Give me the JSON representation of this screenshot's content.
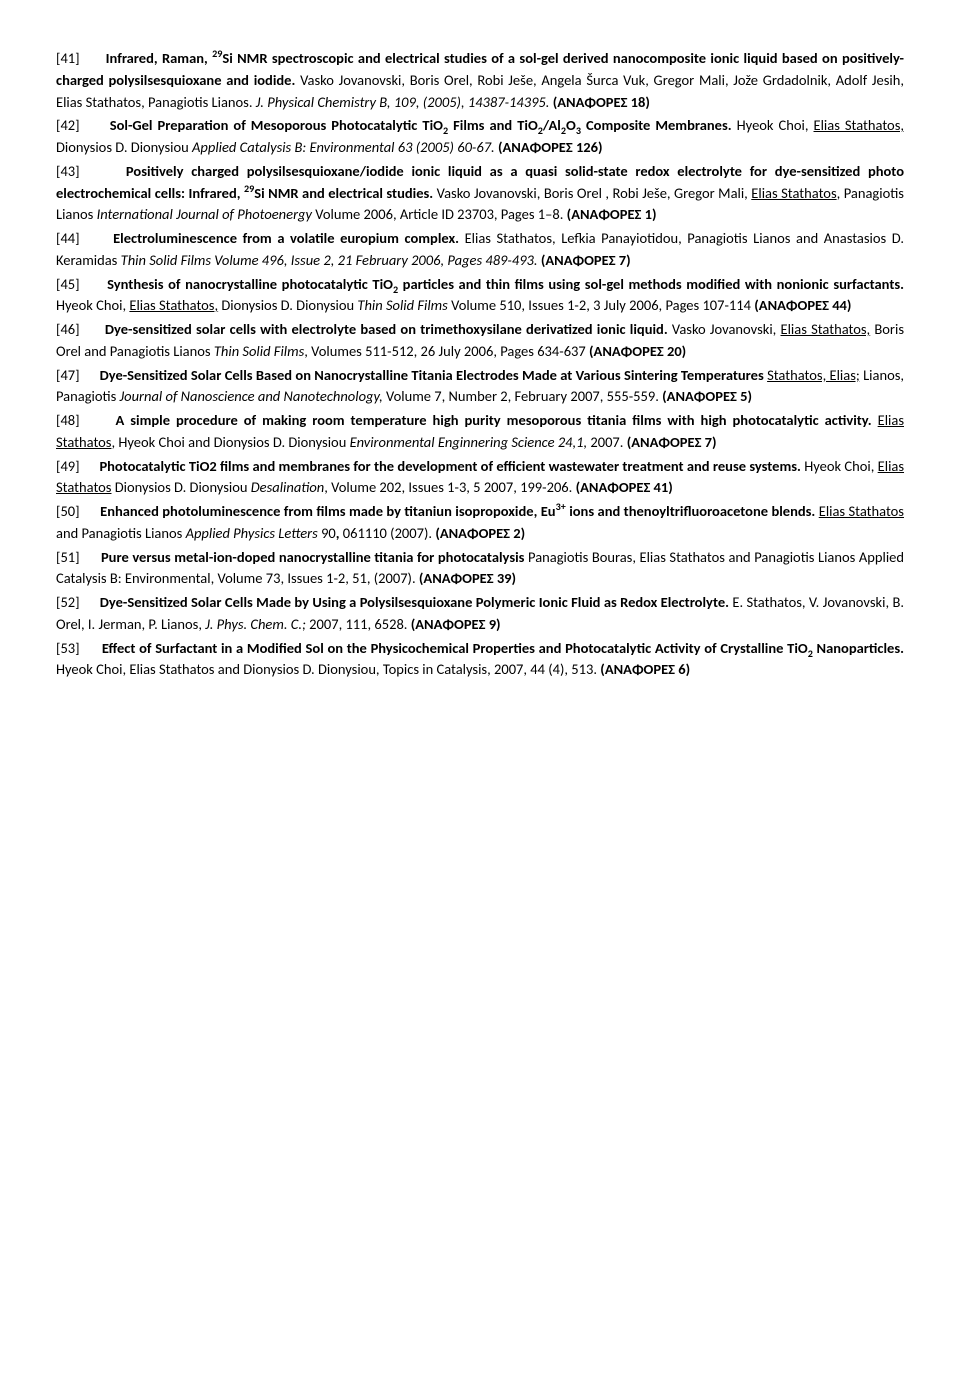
{
  "entries": [
    {
      "num": "[41]",
      "title_html": "Infrared, Raman, <sup>29</sup>Si NMR spectroscopic and electrical studies of a sol-gel derived nanocomposite ionic liquid based on positively-charged polysilsesquioxane and iodide.",
      "rest_html": " Vasko Jovanovski, Boris Orel, Robi Ješe, Angela Šurca Vuk, Gregor Mali, Jože Grdadolnik, Adolf Jesih, Elias Stathatos, Panagiotis Lianos. <span class=\"italic\">J. Physical Chemistry B, 109, (2005), 14387-14395.</span> <span class=\"bold\">(ΑΝΑΦΟΡΕΣ 18)</span>"
    },
    {
      "num": "[42]",
      "title_html": "Sol-Gel Preparation of Mesoporous Photocatalytic TiO<sub>2</sub> Films and TiO<sub>2</sub>/Al<sub>2</sub>O<sub>3</sub> Composite Membranes.",
      "rest_html": " Hyeok Choi, <span class=\"underline\">Elias Stathatos,</span> Dionysios D. Dionysiou <span class=\"italic\">Applied Catalysis B: Environmental 63 (2005) 60-67.</span> <span class=\"bold\">(ΑΝΑΦΟΡΕΣ  126)</span>"
    },
    {
      "num": "[43]",
      "title_html": "Positively charged polysilsesquioxane/iodide ionic liquid as a quasi solid-state redox electrolyte for dye-sensitized photo electrochemical cells: Infrared, <sup>29</sup>Si NMR and electrical studies.",
      "rest_html": " Vasko Jovanovski, Boris Orel , Robi Ješe, Gregor  Mali, <span class=\"underline\">Elias Stathatos</span>, Panagiotis Lianos <span class=\"italic\">International Journal of Photoenergy</span> Volume 2006, Article ID 23703, Pages 1–8. <span class=\"bold\">(ΑΝΑΦΟΡΕΣ  1)</span>"
    },
    {
      "num": "[44]",
      "title_html": "Electroluminescence from a volatile europium complex.",
      "rest_html": " Elias Stathatos, Lefkia Panayiotidou, Panagiotis Lianos and Anastasios D. Keramidas <span class=\"italic\">Thin Solid Films Volume 496, Issue 2, 21 February 2006, Pages 489-493.</span> <span class=\"bold\">(ΑΝΑΦΟΡΕΣ  7)</span>"
    },
    {
      "num": "[45]",
      "title_html": "Synthesis of nanocrystalline photocatalytic TiO<sub>2</sub> particles and thin films using sol-gel methods modified with nonionic surfactants.",
      "rest_html": " Hyeok Choi, <span class=\"underline\">Elias Stathatos,</span> Dionysios D. Dionysiou  <span class=\"italic\">Thin Solid Films</span>  Volume 510, Issues 1-2, 3 July 2006, Pages 107-114 <span class=\"bold\">(ΑΝΑΦΟΡΕΣ  44)</span>"
    },
    {
      "num": "[46]",
      "title_html": "Dye-sensitized solar cells with electrolyte based on trimethoxysilane derivatized ionic liquid.",
      "rest_html": " Vasko Jovanovski,   <span class=\"underline\">Elias  Stathatos,</span> Boris  Orel  and  Panagiotis  Lianos  <span class=\"italic\">Thin  Solid  Films</span>, Volumes  511-512, 26 July 2006, Pages 634-637 <span class=\"bold\">(ΑΝΑΦΟΡΕΣ  20)</span>"
    },
    {
      "num": "[47]",
      "title_html": "Dye-Sensitized Solar Cells Based on Nanocrystalline Titania Electrodes Made at Various Sintering Temperatures",
      "rest_html": " <span class=\"underline\">Stathatos, Elias;</span> Lianos, Panagiotis <span class=\"italic\">Journal of Nanoscience and Nanotechnology,</span> Volume 7, Number 2, February 2007, 555-559. <span class=\"bold\">(ΑΝΑΦΟΡΕΣ  5)</span>"
    },
    {
      "num": "[48]",
      "title_html": "A simple procedure of making room temperature high purity mesoporous titania films with high photocatalytic activity.",
      "rest_html": " <span class=\"underline\">Elias  Stathatos</span>,  Hyeok  Choi  and  Dionysios  D.  Dionysiou  <span class=\"italic\">Environmental Enginnering Science 24,1,</span> 2007.  <span class=\"bold\">(ΑΝΑΦΟΡΕΣ  7)</span>"
    },
    {
      "num": "[49]",
      "title_html": "Photocatalytic TiO2 films and membranes for the development of efficient wastewater treatment and reuse systems.",
      "rest_html": "  Hyeok Choi, <span class=\"underline\">Elias Stathatos</span> Dionysios D. Dionysiou <span class=\"italic\">Desalination</span>, Volume 202, Issues 1-3, 5 2007, 199-206. <span class=\"bold\">(ΑΝΑΦΟΡΕΣ  41)</span>"
    },
    {
      "num": "[50]",
      "title_html": "Enhanced  photoluminescence  from  films  made  by  titaniun  isopropoxide,  Eu<sup>3+</sup>  ions  and thenoyltrifluoroacetone  blends.",
      "rest_html": "   <span class=\"underline\">Elias  Stathatos</span>  and  Panagiotis  Lianos  <span class=\"italic\">Applied  Physics  Letters</span>  90<span class=\"bold\">,</span> 061110 (2007). <span class=\"bold\">(ΑΝΑΦΟΡΕΣ  2)</span>"
    },
    {
      "num": "[51]",
      "title_html": "Pure versus metal-ion-doped nanocrystalline titania for photocatalysis",
      "rest_html": " Panagiotis Bouras, Elias Stathatos and Panagiotis Lianos Applied Catalysis B: Environmental, Volume 73, Issues 1-2, 51, (2007). <span class=\"bold\">(ΑΝΑΦΟΡΕΣ 39)</span>"
    },
    {
      "num": "[52]",
      "title_html": "Dye-Sensitized Solar Cells Made by Using a Polysilsesquioxane Polymeric Ionic Fluid as Redox Electrolyte.",
      "rest_html": "  E. Stathatos, V. Jovanovski, B. Orel, I. Jerman, P. Lianos, <span class=\"italic\">J. Phys. Chem. C.;</span> 2007, 111, 6528. <span class=\"bold\">(ΑΝΑΦΟΡΕΣ 9)</span>"
    },
    {
      "num": "[53]",
      "title_html": "Effect of Surfactant in a Modified Sol on the Physicochemical Properties and Photocatalytic Activity  of  Crystalline  TiO<sub>2</sub>  Nanoparticles.",
      "rest_html": "  Hyeok  Choi,  Elias  Stathatos  and  Dionysios  D.  Dionysiou, Topics in Catalysis,  2007, 44 (4), 513. <span class=\"bold\">(ΑΝΑΦΟΡΕΣ  6)</span>"
    }
  ]
}
